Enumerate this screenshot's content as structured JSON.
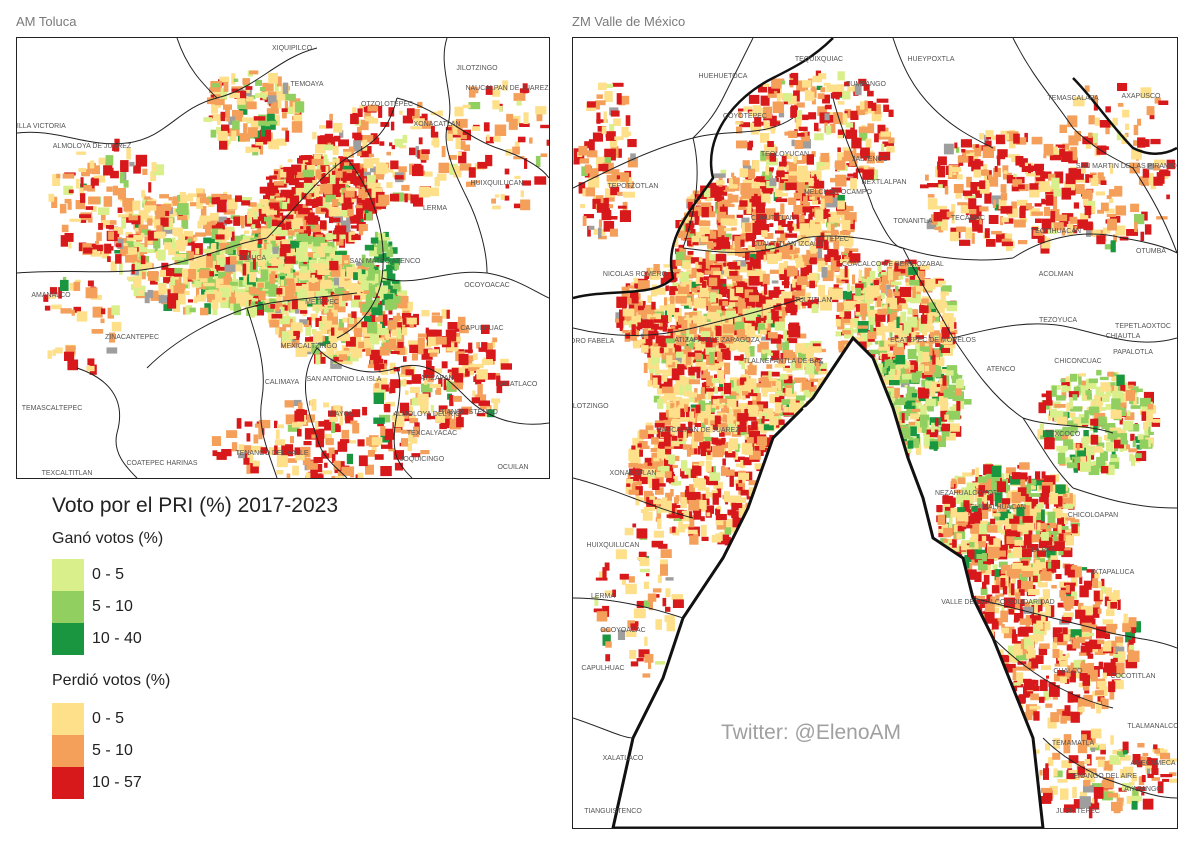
{
  "panels": {
    "left": {
      "title": "AM Toluca"
    },
    "right": {
      "title": "ZM Valle de México"
    }
  },
  "legend": {
    "title": "Voto por el PRI (%) 2017-2023",
    "gain_title": "Ganó votos (%)",
    "loss_title": "Perdió votos (%)",
    "gain": [
      {
        "label": "0 - 5",
        "color": "#d9ef8b"
      },
      {
        "label": "5 - 10",
        "color": "#91cf60"
      },
      {
        "label": "10 - 40",
        "color": "#1a9641"
      }
    ],
    "loss": [
      {
        "label": "0 - 5",
        "color": "#fee08b"
      },
      {
        "label": "5 - 10",
        "color": "#f4a05a"
      },
      {
        "label": "10 - 57",
        "color": "#d7191c"
      }
    ]
  },
  "credit": "Twitter: @ElenoAM",
  "toluca_places": [
    "XIQUIPILCO",
    "TEMOAYA",
    "JILOTZINGO",
    "NAUCALPAN DE JUAREZ",
    "VILLA VICTORIA",
    "ALMOLOYA DE JUAREZ",
    "OTZOLOTEPEC",
    "XONACATLAN",
    "HUIXQUILUCAN",
    "LERMA",
    "TOLUCA",
    "SAN MATEO ATENCO",
    "OCOYOACAC",
    "METEPEC",
    "AMANALCO",
    "ZINACANTEPEC",
    "CAPULHUAC",
    "MEXICALTZINGO",
    "CALIMAYA",
    "SAN ANTONIO LA ISLA",
    "ATIZAPAN",
    "XALATLACO",
    "RAYON",
    "ALMOLOYA DEL RIO",
    "TIANGUISTENCO",
    "TEMASCALTEPEC",
    "TENANGO DEL VALLE",
    "TEXCALYACAC",
    "JOQUICINGO",
    "COATEPEC HARINAS",
    "TEXCALTITLAN",
    "OCUILAN"
  ],
  "mexico_places": [
    "TEQUIXQUIAC",
    "HUEYPOXTLA",
    "HUEHUETOCA",
    "COYOTEPEC",
    "ZUMPANGO",
    "TEMASCALAPA",
    "AXAPUSCO",
    "SAN MARTIN DE LAS PIRAMIDES",
    "TEOLOYUCAN",
    "JALTENCO",
    "MELCHOR OCAMPO",
    "NEXTLALPAN",
    "TEPOTZOTLAN",
    "CUAUTITLAN",
    "TECAMAC",
    "TEOTIHUACAN",
    "CUAUTITLAN IZCALLI",
    "TULTEPEC",
    "TONANITLA",
    "OTUMBA",
    "NICOLAS ROMERO",
    "COACALCO DE BERRIOZABAL",
    "ACOLMAN",
    "TULTITLAN",
    "TEZOYUCA",
    "TEPETLAOXTOC",
    "CHIAUTLA",
    "PAPALOTLA",
    "ISIDRO FABELA",
    "ATIZAPAN DE ZARAGOZA",
    "ECATEPEC DE MORELOS",
    "CHICONCUAC",
    "TLALNEPANTLA DE BAZ",
    "ATENCO",
    "JILOTZINGO",
    "TEXCOCO",
    "NAUCALPAN DE JUAREZ",
    "XONACATLAN",
    "NEZAHUALCOYOTL",
    "CHIMALHUACAN",
    "CHICOLOAPAN",
    "HUIXQUILUCAN",
    "LA PAZ",
    "IXTAPALUCA",
    "LERMA",
    "VALLE DE CHALCO SOLIDARIDAD",
    "OCOYOACAC",
    "CAPULHUAC",
    "CHALCO",
    "COCOTITLAN",
    "TLALMANALCO",
    "TEMAMATLA",
    "XALATLACO",
    "TENANGO DEL AIRE",
    "AMECAMECA",
    "AYAPANGO",
    "TIANGUISTENCO",
    "JUCHITEPEC"
  ]
}
